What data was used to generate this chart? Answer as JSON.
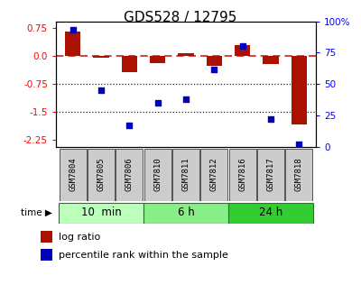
{
  "title": "GDS528 / 12795",
  "samples": [
    "GSM7804",
    "GSM7805",
    "GSM7806",
    "GSM7810",
    "GSM7811",
    "GSM7812",
    "GSM7816",
    "GSM7817",
    "GSM7818"
  ],
  "log_ratio": [
    0.65,
    -0.05,
    -0.45,
    -0.2,
    0.07,
    -0.28,
    0.28,
    -0.22,
    -1.85
  ],
  "percentile_rank": [
    93,
    45,
    17,
    35,
    38,
    62,
    80,
    22,
    2
  ],
  "groups": [
    {
      "label": "10  min",
      "color": "#bbffbb",
      "start": 0,
      "end": 3
    },
    {
      "label": "6 h",
      "color": "#88ee88",
      "start": 3,
      "end": 6
    },
    {
      "label": "24 h",
      "color": "#33cc33",
      "start": 6,
      "end": 9
    }
  ],
  "ylim_left": [
    -2.45,
    0.92
  ],
  "ylim_right": [
    0,
    100
  ],
  "yticks_left": [
    0.75,
    0.0,
    -0.75,
    -1.5,
    -2.25
  ],
  "yticks_right": [
    100,
    75,
    50,
    25,
    0
  ],
  "bar_color": "#aa1100",
  "dot_color": "#0000bb",
  "hline_color": "#cc2222",
  "dot_line_color": "#222222",
  "bar_width": 0.55,
  "label_bg": "#cccccc",
  "title_fontsize": 11
}
